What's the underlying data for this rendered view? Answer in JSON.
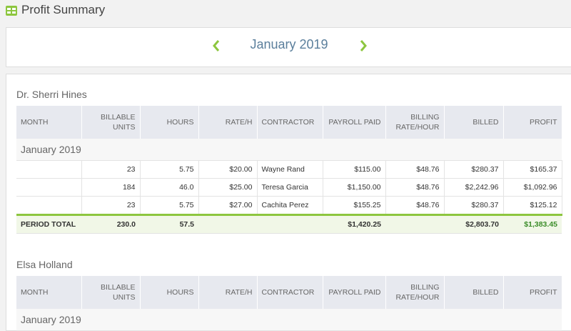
{
  "header": {
    "title": "Profit Summary"
  },
  "period_nav": {
    "label": "January 2019"
  },
  "sections": [
    {
      "name": "Dr. Sherri Hines",
      "columns": [
        "MONTH",
        "BILLABLE UNITS",
        "HOURS",
        "RATE/H",
        "CONTRACTOR",
        "PAYROLL PAID",
        "BILLING RATE/HOUR",
        "BILLED",
        "PROFIT"
      ],
      "groups": [
        {
          "label": "January 2019",
          "rows": [
            [
              "23",
              "5.75",
              "$20.00",
              "Wayne Rand",
              "$115.00",
              "$48.76",
              "$280.37",
              "$165.37"
            ],
            [
              "184",
              "46.0",
              "$25.00",
              "Teresa Garcia",
              "$1,150.00",
              "$48.76",
              "$2,242.96",
              "$1,092.96"
            ],
            [
              "23",
              "5.75",
              "$27.00",
              "Cachita Perez",
              "$155.25",
              "$48.76",
              "$280.37",
              "$125.12"
            ]
          ]
        }
      ],
      "total": {
        "label": "PERIOD TOTAL",
        "billable_units": "230.0",
        "hours": "57.5",
        "payroll_paid": "$1,420.25",
        "billed": "$2,803.70",
        "profit": "$1,383.45"
      }
    },
    {
      "name": "Elsa Holland",
      "columns": [
        "MONTH",
        "BILLABLE UNITS",
        "HOURS",
        "RATE/H",
        "CONTRACTOR",
        "PAYROLL PAID",
        "BILLING RATE/HOUR",
        "BILLED",
        "PROFIT"
      ],
      "groups": [
        {
          "label": "January 2019"
        }
      ]
    }
  ]
}
